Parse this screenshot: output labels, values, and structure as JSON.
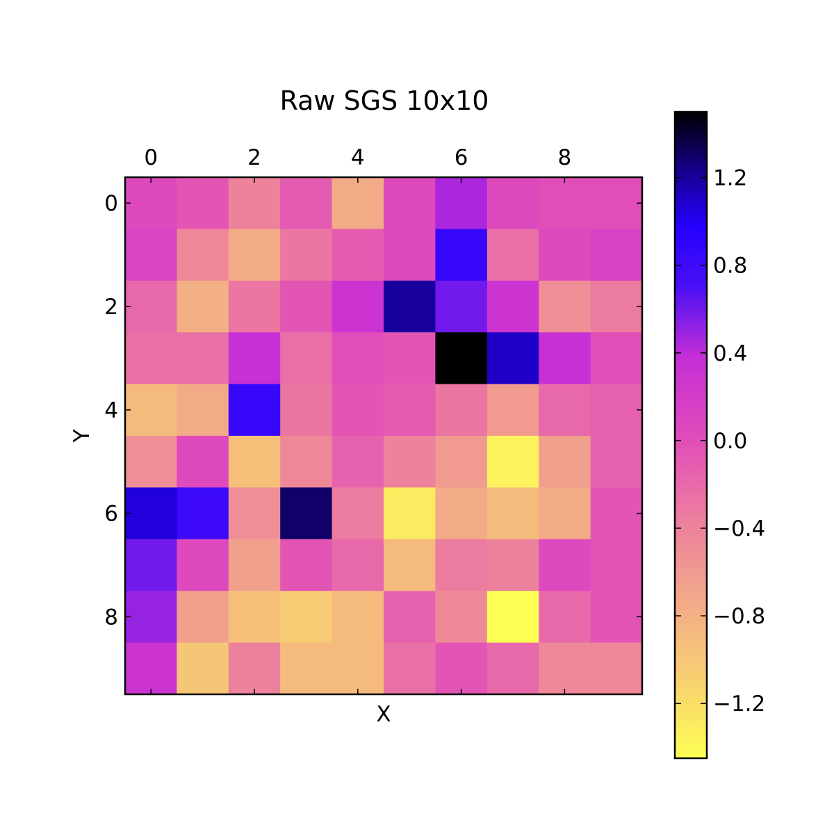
{
  "chart_data": {
    "type": "heatmap",
    "title": "Raw SGS 10x10",
    "xlabel": "X",
    "ylabel": "Y",
    "colormap": "plasma_r",
    "vmin": -1.45,
    "vmax": 1.5,
    "x_ticks": [
      0,
      2,
      4,
      6,
      8
    ],
    "y_ticks": [
      0,
      2,
      4,
      6,
      8
    ],
    "x_tick_position": "top",
    "colorbar_ticks": [
      1.2,
      0.8,
      0.4,
      0.0,
      -0.4,
      -0.8,
      -1.2
    ],
    "colorbar_tick_labels": [
      "1.2",
      "0.8",
      "0.4",
      "0.0",
      "−0.4",
      "−0.8",
      "−1.2"
    ],
    "grid": false,
    "rows": [
      [
        0.05,
        -0.05,
        -0.4,
        -0.1,
        -0.75,
        0.05,
        0.45,
        0.05,
        0.0,
        0.0
      ],
      [
        0.1,
        -0.45,
        -0.75,
        -0.3,
        -0.1,
        0.05,
        0.85,
        -0.25,
        0.05,
        0.15
      ],
      [
        -0.2,
        -0.8,
        -0.3,
        -0.05,
        0.3,
        1.2,
        0.6,
        0.3,
        -0.5,
        -0.35
      ],
      [
        -0.25,
        -0.25,
        0.35,
        -0.25,
        0.0,
        -0.05,
        1.5,
        1.1,
        0.35,
        0.0
      ],
      [
        -0.9,
        -0.75,
        0.85,
        -0.3,
        -0.05,
        -0.1,
        -0.3,
        -0.6,
        -0.2,
        -0.15
      ],
      [
        -0.5,
        0.05,
        -0.95,
        -0.45,
        -0.15,
        -0.4,
        -0.6,
        -1.35,
        -0.65,
        -0.15
      ],
      [
        1.05,
        0.8,
        -0.5,
        1.3,
        -0.35,
        -1.3,
        -0.75,
        -0.9,
        -0.75,
        -0.05
      ],
      [
        0.6,
        0.05,
        -0.65,
        -0.05,
        -0.2,
        -0.9,
        -0.35,
        -0.4,
        0.05,
        -0.05
      ],
      [
        0.5,
        -0.65,
        -0.95,
        -1.05,
        -0.9,
        -0.15,
        -0.45,
        -1.45,
        -0.2,
        -0.05
      ],
      [
        0.3,
        -1.0,
        -0.4,
        -0.9,
        -0.9,
        -0.25,
        -0.05,
        -0.2,
        -0.45,
        -0.45
      ]
    ]
  }
}
